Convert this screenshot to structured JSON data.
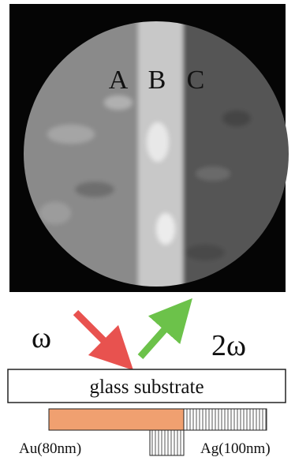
{
  "image": {
    "labels": [
      "A",
      "B",
      "C"
    ]
  },
  "diagram": {
    "input": "ω",
    "output": "2ω",
    "substrate": "glass substrate",
    "left_film": "Au(80nm)",
    "right_film": "Ag(100nm)"
  }
}
